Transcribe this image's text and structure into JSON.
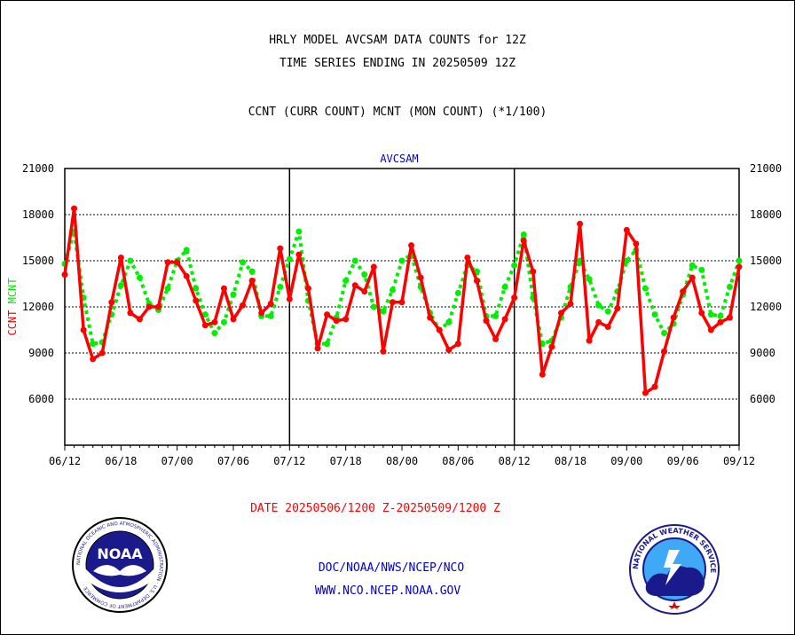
{
  "header": {
    "line1": "HRLY MODEL AVCSAM DATA COUNTS for 12Z",
    "line2": "TIME SERIES ENDING IN 20250509 12Z",
    "line3": "CCNT (CURR COUNT) MCNT (MON COUNT) (*1/100)"
  },
  "footer": {
    "date_range": "DATE 20250506/1200 Z-20250509/1200 Z",
    "org": "DOC/NOAA/NWS/NCEP/NCO",
    "url": "WWW.NCO.NCEP.NOAA.GOV"
  },
  "logos": {
    "noaa_center": "NOAA",
    "noaa_ring": "NATIONAL OCEANIC AND ATMOSPHERIC ADMINISTRATION · U.S. DEPARTMENT OF COMMERCE ·",
    "nws_ring": "NATIONAL WEATHER SERVICE"
  },
  "colors": {
    "ccnt": "#ff0000",
    "mcnt": "#00ee00",
    "label_blue": "#0000cc",
    "grid": "#000000"
  },
  "chart_data": {
    "type": "line",
    "title": "AVCSAM",
    "ylabel_left": [
      "CCNT",
      "MCNT"
    ],
    "ylim": [
      3000,
      21000
    ],
    "yticks": [
      6000,
      9000,
      12000,
      15000,
      18000,
      21000
    ],
    "xlim": [
      0,
      72
    ],
    "xtick_labels": [
      "06/12",
      "06/18",
      "07/00",
      "07/06",
      "07/12",
      "07/18",
      "08/00",
      "08/06",
      "08/12",
      "08/18",
      "09/00",
      "09/06",
      "09/12"
    ],
    "day_dividers_at_hour": [
      24,
      48
    ],
    "horizontal_grid": true,
    "series": [
      {
        "name": "CCNT",
        "values": [
          14100,
          18400,
          10500,
          8600,
          9000,
          12300,
          15200,
          11600,
          11200,
          12000,
          12000,
          14900,
          14900,
          14000,
          12400,
          10800,
          11000,
          13200,
          11200,
          12100,
          13700,
          11600,
          12200,
          15800,
          12500,
          15400,
          13200,
          9300,
          11500,
          11100,
          11200,
          13400,
          13000,
          14600,
          9100,
          12300,
          12300,
          16000,
          13900,
          11300,
          10500,
          9200,
          9600,
          15200,
          13700,
          11100,
          9900,
          11200,
          12600,
          16300,
          14300,
          7600,
          9400,
          11600,
          12200,
          17400,
          9800,
          11000,
          10700,
          11900,
          17000,
          16100,
          6400,
          6800,
          9100,
          11300,
          13000,
          13900,
          11600,
          10500,
          11000,
          11300,
          14600
        ]
      },
      {
        "name": "MCNT",
        "values": [
          14800,
          16900,
          12600,
          9600,
          9700,
          11500,
          13400,
          15000,
          13900,
          12200,
          11800,
          13200,
          15000,
          15700,
          13200,
          11500,
          10300,
          11000,
          12800,
          14900,
          14300,
          11400,
          11400,
          13300,
          15100,
          16900,
          12400,
          9600,
          9600,
          11300,
          13700,
          15000,
          14100,
          12000,
          11700,
          13100,
          15000,
          15400,
          13300,
          11600,
          10500,
          11000,
          12900,
          14700,
          14300,
          11400,
          11400,
          13300,
          14700,
          16700,
          12600,
          9600,
          9800,
          11300,
          13300,
          15000,
          13800,
          12100,
          11700,
          13000,
          15000,
          15700,
          13200,
          11500,
          10300,
          10900,
          12800,
          14700,
          14400,
          11500,
          11400,
          13300,
          15000
        ]
      }
    ]
  }
}
